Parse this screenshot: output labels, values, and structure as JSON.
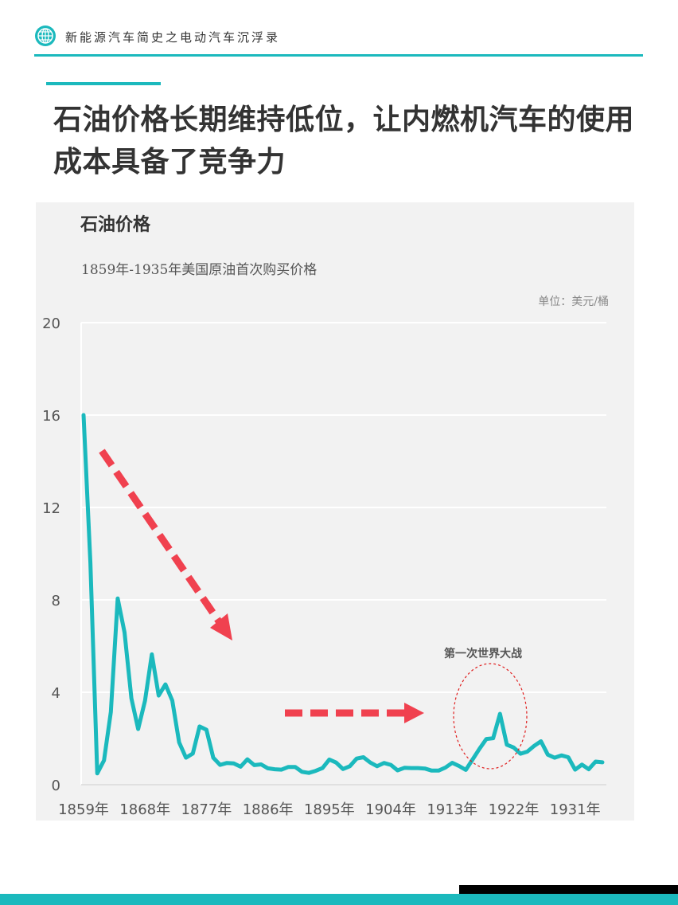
{
  "header": {
    "title": "新能源汽车简史之电动汽车沉浮录",
    "logo_icon": "globe-icon",
    "accent_color": "#1bb9bd"
  },
  "main_title": "石油价格长期维持低位，让内燃机汽车的使用成本具备了竞争力",
  "chart_data": {
    "type": "line",
    "title": "石油价格",
    "subtitle": "1859年-1935年美国原油首次购买价格",
    "unit_label": "单位：美元/桶",
    "ylim": [
      0,
      20
    ],
    "y_ticks": [
      "0",
      "4",
      "8",
      "12",
      "16",
      "20"
    ],
    "x_ticks": [
      "1859年",
      "1868年",
      "1877年",
      "1886年",
      "1895年",
      "1904年",
      "1913年",
      "1922年",
      "1931年"
    ],
    "grid": true,
    "line_color": "#1bb9bd",
    "series": [
      {
        "x": [
          1859,
          1860,
          1861,
          1862,
          1863,
          1864,
          1865,
          1866,
          1867,
          1868,
          1869,
          1870,
          1871,
          1872,
          1873,
          1874,
          1875,
          1876,
          1877,
          1878,
          1879,
          1880,
          1881,
          1882,
          1883,
          1884,
          1885,
          1886,
          1887,
          1888,
          1889,
          1890,
          1891,
          1892,
          1893,
          1894,
          1895,
          1896,
          1897,
          1898,
          1899,
          1900,
          1901,
          1902,
          1903,
          1904,
          1905,
          1906,
          1907,
          1908,
          1909,
          1910,
          1911,
          1912,
          1913,
          1914,
          1915,
          1916,
          1917,
          1918,
          1919,
          1920,
          1921,
          1922,
          1923,
          1924,
          1925,
          1926,
          1927,
          1928,
          1929,
          1930,
          1931,
          1932,
          1933,
          1934,
          1935
        ],
        "values": [
          16.0,
          9.6,
          0.49,
          1.05,
          3.15,
          8.06,
          6.59,
          3.74,
          2.41,
          3.63,
          5.64,
          3.86,
          4.34,
          3.64,
          1.83,
          1.17,
          1.35,
          2.52,
          2.38,
          1.17,
          0.86,
          0.94,
          0.92,
          0.78,
          1.1,
          0.85,
          0.88,
          0.71,
          0.67,
          0.65,
          0.77,
          0.77,
          0.56,
          0.51,
          0.6,
          0.72,
          1.09,
          0.96,
          0.68,
          0.8,
          1.13,
          1.19,
          0.96,
          0.8,
          0.94,
          0.86,
          0.62,
          0.73,
          0.72,
          0.72,
          0.7,
          0.61,
          0.61,
          0.74,
          0.95,
          0.81,
          0.64,
          1.1,
          1.56,
          1.98,
          2.01,
          3.07,
          1.73,
          1.61,
          1.34,
          1.43,
          1.68,
          1.88,
          1.3,
          1.17,
          1.27,
          1.19,
          0.65,
          0.87,
          0.67,
          1.0,
          0.97
        ]
      }
    ],
    "annotations": [
      {
        "text": "第一次世界大战",
        "type": "ellipse"
      },
      {
        "type": "arrow-down",
        "color": "#f0414f"
      },
      {
        "type": "arrow-right",
        "color": "#f0414f"
      }
    ]
  }
}
